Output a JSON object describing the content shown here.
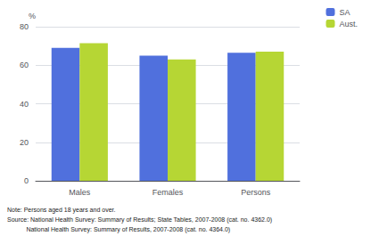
{
  "chart_data": {
    "type": "bar",
    "categories": [
      "Males",
      "Females",
      "Persons"
    ],
    "series": [
      {
        "name": "SA",
        "values": [
          69.0,
          65.0,
          66.5
        ]
      },
      {
        "name": "Aust.",
        "values": [
          71.5,
          63.0,
          67.0
        ]
      }
    ],
    "ylabel": "%",
    "ylim": [
      0,
      80
    ],
    "yticks": [
      0,
      20,
      40,
      60,
      80
    ],
    "grid": true,
    "legend": "upper right",
    "annotations": [
      "Note: Persons aged 18 years and over.",
      "Source: National Health Survey: Summary of Results; State Tables, 2007-2008 (cat. no. 4362.0)",
      "           National Health Survey: Summary of Results, 2007-2008 (cat. no. 4364.0)"
    ]
  }
}
